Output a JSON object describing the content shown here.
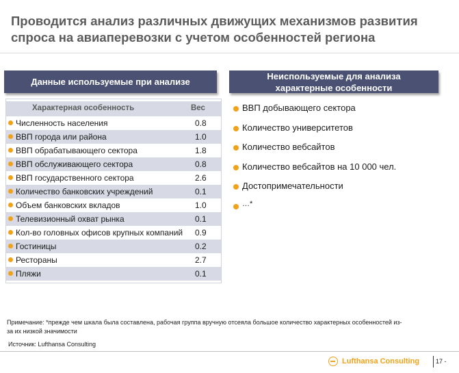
{
  "title": {
    "line1": "Проводится анализ различных движущих механизмов развития",
    "line2": "спроса на авиаперевозки с учетом особенностей региона"
  },
  "left_panel": {
    "header": "Данные используемые при анализе",
    "col_feature": "Характерная особенность",
    "col_weight": "Вес",
    "rows": [
      {
        "label": "Численность населения",
        "value": "0.8"
      },
      {
        "label": "ВВП города или района",
        "value": "1.0"
      },
      {
        "label": "ВВП обрабатывающего сектора",
        "value": "1.8"
      },
      {
        "label": "ВВП обслуживающего сектора",
        "value": "0.8"
      },
      {
        "label": "ВВП государственного сектора",
        "value": "2.6"
      },
      {
        "label": "Количество банковских учреждений",
        "value": "0.1"
      },
      {
        "label": "Объем банковских вкладов",
        "value": "1.0"
      },
      {
        "label": "Телевизионный охват рынка",
        "value": "0.1"
      },
      {
        "label": "Кол-во головных офисов крупных компаний",
        "value": "0.9"
      },
      {
        "label": "Гостиницы",
        "value": "0.2"
      },
      {
        "label": "Рестораны",
        "value": "2.7"
      },
      {
        "label": "Пляжи",
        "value": "0.1"
      }
    ]
  },
  "right_panel": {
    "header_line1": "Неиспользуемые для анализа",
    "header_line2": "характерные особенности",
    "items": [
      "ВВП добывающего сектора",
      "Количество университетов",
      "Количество вебсайтов",
      "Количество вебсайтов на 10 000 чел.",
      "Достопримечательности",
      "…*"
    ]
  },
  "note": "Примечание: *прежде чем шкала была составлена, рабочая группа вручную отсеяла большое количество характерных особенностей из-за их низкой значимости",
  "source": "Источник: Lufthansa Consulting",
  "footer": {
    "brand": "Lufthansa Consulting",
    "page": "17 -"
  },
  "colors": {
    "header_bg": "#4a5173",
    "row_alt": "#d7dae4",
    "accent": "#f0a21a"
  }
}
